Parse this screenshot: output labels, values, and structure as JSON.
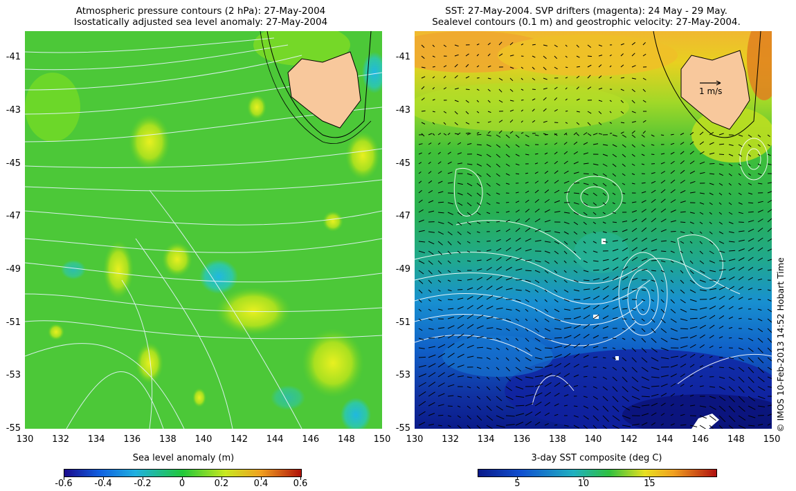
{
  "left_panel": {
    "title_line1": "Atmospheric pressure contours (2 hPa): 27-May-2004",
    "title_line2": "Isostatically adjusted sea level anomaly: 27-May-2004",
    "colorbar_label": "Sea level anomaly (m)",
    "colorbar_ticks": [
      "-0.6",
      "-0.4",
      "-0.2",
      "0",
      "0.2",
      "0.4",
      "0.6"
    ],
    "colorbar_range": [
      -0.6,
      0.6
    ],
    "colors": {
      "low": "#1a0a8c",
      "mid": "#22c83a",
      "high": "#b0120a"
    }
  },
  "right_panel": {
    "title_line1": "SST: 27-May-2004. SVP drifters (magenta): 24 May - 29 May.",
    "title_line2": "Sealevel contours (0.1 m) and geostrophic velocity: 27-May-2004.",
    "colorbar_label": "3-day SST composite (deg C)",
    "colorbar_ticks": [
      "5",
      "10",
      "15"
    ],
    "colorbar_range": [
      2,
      20
    ],
    "velocity_scale_label": "1 m/s",
    "colors": {
      "cold": "#0a1a8a",
      "warm": "#f0a020",
      "land": "#f8c89c"
    }
  },
  "axes": {
    "lat_ticks": [
      "-41",
      "-43",
      "-45",
      "-47",
      "-49",
      "-51",
      "-53",
      "-55"
    ],
    "lon_ticks": [
      "130",
      "132",
      "134",
      "136",
      "138",
      "140",
      "142",
      "144",
      "146",
      "148",
      "150"
    ],
    "lat_range": [
      -55,
      -40
    ],
    "lon_range": [
      130,
      150
    ]
  },
  "credit": "© IMOS 10-Feb-2013 14:52 Hobart Time"
}
